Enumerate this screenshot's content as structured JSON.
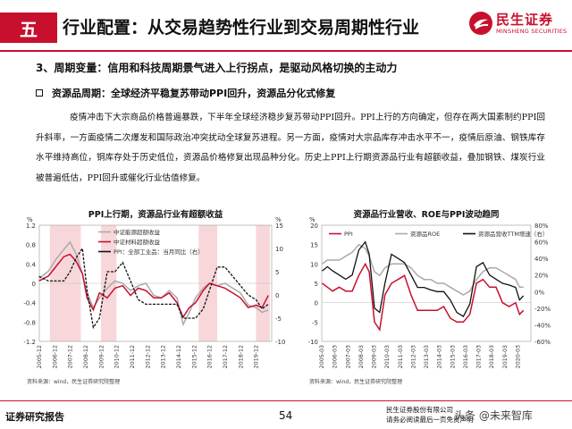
{
  "header": {
    "section_number": "五",
    "title": "行业配置：从交易趋势性行业到交易周期性行业",
    "logo_cn": "民生证券",
    "logo_en": "MINSHENG SECURITIES",
    "brand_color": "#c8102e"
  },
  "subheading": "3、周期变量：信用和科技周期景气进入上行拐点，是驱动风格切换的主动力",
  "bullet": "资源品周期：全球经济平稳复苏带动PPI回升，资源品分化式修复",
  "paragraph": "疫情冲击下大宗商品价格普遍暴跌，下半年全球经济稳步复苏带动PPI回升。PPI上行的方向确定，但存在两大国素制约PPI回升斜率，一方面疫情二次爆发和国际政治冲突扰动全球复苏进程。另一方面，疫情对大宗品库存冲击水平不一，疫情后原油、钢铁库存水平维持高位，铜库存处于历史低位，资源品价格修复出现品种分化。历史上PPI上行期资源品行业有超额收益，叠加钢铁、煤炭行业被普遍低估，PPI回升或催化行业估值修复。",
  "chart_data": [
    {
      "type": "line",
      "title": "PPI上行期，资源品行业有超额收益",
      "left_unit": "%",
      "right_unit": "%",
      "ylim": [
        -1.2,
        1.2
      ],
      "y_ticks": [
        "1.2",
        "0.8",
        "0.4",
        "0",
        "-0.4",
        "-0.8",
        "-1.2"
      ],
      "y2lim": [
        -10,
        15
      ],
      "y2_ticks": [
        "15",
        "10",
        "5",
        "0",
        "-5",
        "-10"
      ],
      "x_ticks": [
        "2005-12",
        "2006-12",
        "2007-12",
        "2008-12",
        "2009-12",
        "2010-12",
        "2011-12",
        "2012-12",
        "2013-12",
        "2014-12",
        "2015-12",
        "2016-12",
        "2017-12",
        "2018-12",
        "2019-12"
      ],
      "series": [
        {
          "name": "中证能源超额收益",
          "axis": "left",
          "color": "#aaaaaa",
          "x": [
            2005.9,
            2006.5,
            2007.0,
            2007.5,
            2007.9,
            2008.3,
            2008.7,
            2009.0,
            2009.4,
            2009.8,
            2010.3,
            2010.8,
            2011.3,
            2011.8,
            2012.3,
            2012.8,
            2013.3,
            2013.8,
            2014.3,
            2014.8,
            2015.2,
            2015.6,
            2016.0,
            2016.5,
            2016.9,
            2017.4,
            2017.9,
            2018.4,
            2018.9,
            2019.4,
            2019.9,
            2020.3,
            2020.7
          ],
          "y": [
            0.1,
            0.25,
            0.5,
            0.7,
            0.85,
            0.6,
            0.2,
            -0.2,
            -0.5,
            -0.3,
            -0.1,
            0.05,
            0.0,
            -0.15,
            -0.05,
            0.0,
            -0.25,
            -0.3,
            -0.15,
            -0.3,
            -0.85,
            -0.6,
            -0.3,
            -0.1,
            0.0,
            -0.05,
            0.0,
            -0.1,
            -0.2,
            -0.45,
            -0.5,
            -0.6,
            -0.55
          ]
        },
        {
          "name": "中证材料超额收益",
          "axis": "left",
          "color": "#c8102e",
          "x": [
            2005.9,
            2006.5,
            2007.0,
            2007.5,
            2007.9,
            2008.3,
            2008.7,
            2009.0,
            2009.4,
            2009.8,
            2010.3,
            2010.8,
            2011.3,
            2011.8,
            2012.3,
            2012.8,
            2013.3,
            2013.8,
            2014.3,
            2014.8,
            2015.2,
            2015.6,
            2016.0,
            2016.5,
            2016.9,
            2017.4,
            2017.9,
            2018.4,
            2018.9,
            2019.4,
            2019.9,
            2020.3,
            2020.7
          ],
          "y": [
            0.05,
            0.15,
            0.35,
            0.55,
            0.6,
            0.45,
            0.2,
            -0.3,
            -0.55,
            -0.2,
            -0.3,
            -0.1,
            -0.05,
            -0.25,
            -0.1,
            -0.15,
            -0.3,
            -0.3,
            -0.2,
            -0.4,
            -0.7,
            -0.5,
            -0.4,
            -0.15,
            0.0,
            -0.05,
            -0.1,
            -0.2,
            -0.3,
            -0.5,
            -0.45,
            -0.5,
            -0.25
          ]
        },
        {
          "name": "PPI：全部工业品：当月同比（右）",
          "axis": "right",
          "color": "#111111",
          "x": [
            2005.9,
            2006.5,
            2007.0,
            2007.5,
            2007.9,
            2008.3,
            2008.7,
            2009.0,
            2009.4,
            2009.8,
            2010.3,
            2010.8,
            2011.3,
            2011.8,
            2012.3,
            2012.8,
            2013.3,
            2013.8,
            2014.3,
            2014.8,
            2015.2,
            2015.6,
            2016.0,
            2016.5,
            2016.9,
            2017.4,
            2017.9,
            2018.4,
            2018.9,
            2019.4,
            2019.9,
            2020.3,
            2020.7
          ],
          "y": [
            4,
            3,
            3,
            3,
            5,
            8,
            10,
            1,
            -7,
            -5,
            5,
            5,
            7,
            3,
            -1,
            -2,
            -2,
            -2,
            -2,
            -2,
            -5,
            -5,
            -5,
            -3,
            1,
            6,
            6,
            4,
            2,
            0,
            -1,
            -3,
            -2
          ]
        }
      ],
      "source": "资料来源：wind，民生证券研究院整理"
    },
    {
      "type": "line",
      "title": "资源品行业营收、ROE与PPI波动趋同",
      "left_unit": "%",
      "right_unit": "",
      "ylim": [
        -10,
        20
      ],
      "y_ticks": [
        "20",
        "15",
        "10",
        "5",
        "0",
        "-5",
        "-10"
      ],
      "y2lim": [
        -60,
        80
      ],
      "y2_ticks": [
        "80%",
        "60%",
        "40%",
        "20%",
        "0%",
        "-20%",
        "-40%",
        "-60%"
      ],
      "x_ticks": [
        "2005-03",
        "2006-03",
        "2007-03",
        "2008-03",
        "2009-03",
        "2010-03",
        "2011-03",
        "2012-03",
        "2013-03",
        "2014-03",
        "2015-03",
        "2016-03",
        "2017-03",
        "2018-03",
        "2019-03",
        "2020-03"
      ],
      "series": [
        {
          "name": "PPI",
          "axis": "left",
          "color": "#c8102e",
          "x": [
            2005.2,
            2005.6,
            2006.0,
            2006.5,
            2007.0,
            2007.5,
            2008.0,
            2008.5,
            2008.8,
            2009.2,
            2009.6,
            2010.0,
            2010.5,
            2011.0,
            2011.5,
            2012.0,
            2012.5,
            2013.0,
            2013.5,
            2014.0,
            2014.5,
            2015.0,
            2015.5,
            2016.0,
            2016.5,
            2017.0,
            2017.5,
            2018.0,
            2018.5,
            2019.0,
            2019.5,
            2020.0,
            2020.3,
            2020.6
          ],
          "y": [
            5,
            4,
            3,
            4,
            3,
            3,
            7,
            10,
            8,
            -5,
            -7,
            2,
            5,
            6,
            7,
            2,
            -2,
            -2,
            -2,
            -2,
            -1,
            -4,
            -5,
            -5,
            -3,
            5,
            6,
            4,
            4,
            0,
            -1,
            0,
            -3,
            -2
          ]
        },
        {
          "name": "资源品ROE",
          "axis": "left",
          "color": "#aaaaaa",
          "x": [
            2005.2,
            2005.6,
            2006.0,
            2006.5,
            2007.0,
            2007.5,
            2008.0,
            2008.5,
            2008.8,
            2009.2,
            2009.6,
            2010.0,
            2010.5,
            2011.0,
            2011.5,
            2012.0,
            2012.5,
            2013.0,
            2013.5,
            2014.0,
            2014.5,
            2015.0,
            2015.5,
            2016.0,
            2016.5,
            2017.0,
            2017.5,
            2018.0,
            2018.5,
            2019.0,
            2019.5,
            2020.0,
            2020.3,
            2020.6
          ],
          "y": [
            10,
            11,
            11,
            11,
            12,
            13,
            15,
            14,
            12,
            8,
            7,
            9,
            10,
            10,
            10,
            9,
            7,
            6,
            6,
            5,
            5,
            4,
            3,
            2,
            3,
            6,
            8,
            9,
            9,
            8,
            7,
            6,
            4,
            4
          ]
        },
        {
          "name": "资源品营收TTM增速（右）",
          "axis": "right",
          "color": "#111111",
          "x": [
            2005.2,
            2005.6,
            2006.0,
            2006.5,
            2007.0,
            2007.5,
            2008.0,
            2008.5,
            2008.8,
            2009.2,
            2009.6,
            2010.0,
            2010.5,
            2011.0,
            2011.5,
            2012.0,
            2012.5,
            2013.0,
            2013.5,
            2014.0,
            2014.5,
            2015.0,
            2015.5,
            2016.0,
            2016.5,
            2017.0,
            2017.5,
            2018.0,
            2018.5,
            2019.0,
            2019.5,
            2020.0,
            2020.3,
            2020.6
          ],
          "y": [
            25,
            30,
            25,
            20,
            15,
            20,
            50,
            60,
            45,
            -20,
            -25,
            10,
            45,
            40,
            35,
            20,
            5,
            5,
            2,
            0,
            0,
            -10,
            -25,
            -30,
            -15,
            30,
            35,
            20,
            15,
            10,
            8,
            5,
            -10,
            -5
          ]
        }
      ],
      "source": "资料来源：wind，民生证券研究院整理"
    }
  ],
  "footer": {
    "left_label": "证券研究报告",
    "page_number": "54",
    "company": "民生证券股份有限公司",
    "disclaimer": "请务必阅读最后一页免责声明",
    "watermark": "头条 @未来智库"
  }
}
